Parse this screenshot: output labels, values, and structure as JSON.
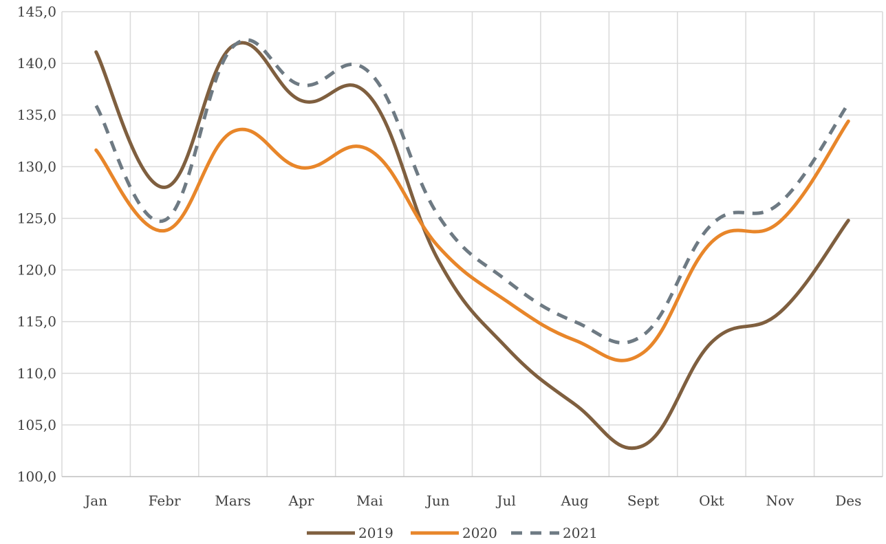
{
  "chart_data": {
    "type": "line",
    "title": "",
    "xlabel": "",
    "ylabel": "",
    "categories": [
      "Jan",
      "Febr",
      "Mars",
      "Apr",
      "Mai",
      "Jun",
      "Jul",
      "Aug",
      "Sept",
      "Okt",
      "Nov",
      "Des"
    ],
    "ylim": [
      100,
      145
    ],
    "y_ticks": [
      "100,0",
      "105,0",
      "110,0",
      "115,0",
      "120,0",
      "125,0",
      "130,0",
      "135,0",
      "140,0",
      "145,0"
    ],
    "grid": true,
    "smooth": true,
    "legend_position": "bottom",
    "series": [
      {
        "name": "2019",
        "color": "#7f5f3f",
        "dash": "solid",
        "values": [
          141.1,
          128.0,
          141.7,
          136.4,
          136.8,
          121.0,
          112.5,
          107.0,
          103.0,
          113.0,
          115.9,
          124.8
        ]
      },
      {
        "name": "2020",
        "color": "#e8862a",
        "dash": "solid",
        "values": [
          131.6,
          123.8,
          133.4,
          129.9,
          131.6,
          122.3,
          117.0,
          113.2,
          112.0,
          122.7,
          124.7,
          134.4
        ]
      },
      {
        "name": "2021",
        "color": "#6e7a83",
        "dash": "dashed",
        "values": [
          135.9,
          124.8,
          141.6,
          137.9,
          139.1,
          125.3,
          119.0,
          115.0,
          113.7,
          124.4,
          126.5,
          136.1
        ]
      }
    ]
  }
}
